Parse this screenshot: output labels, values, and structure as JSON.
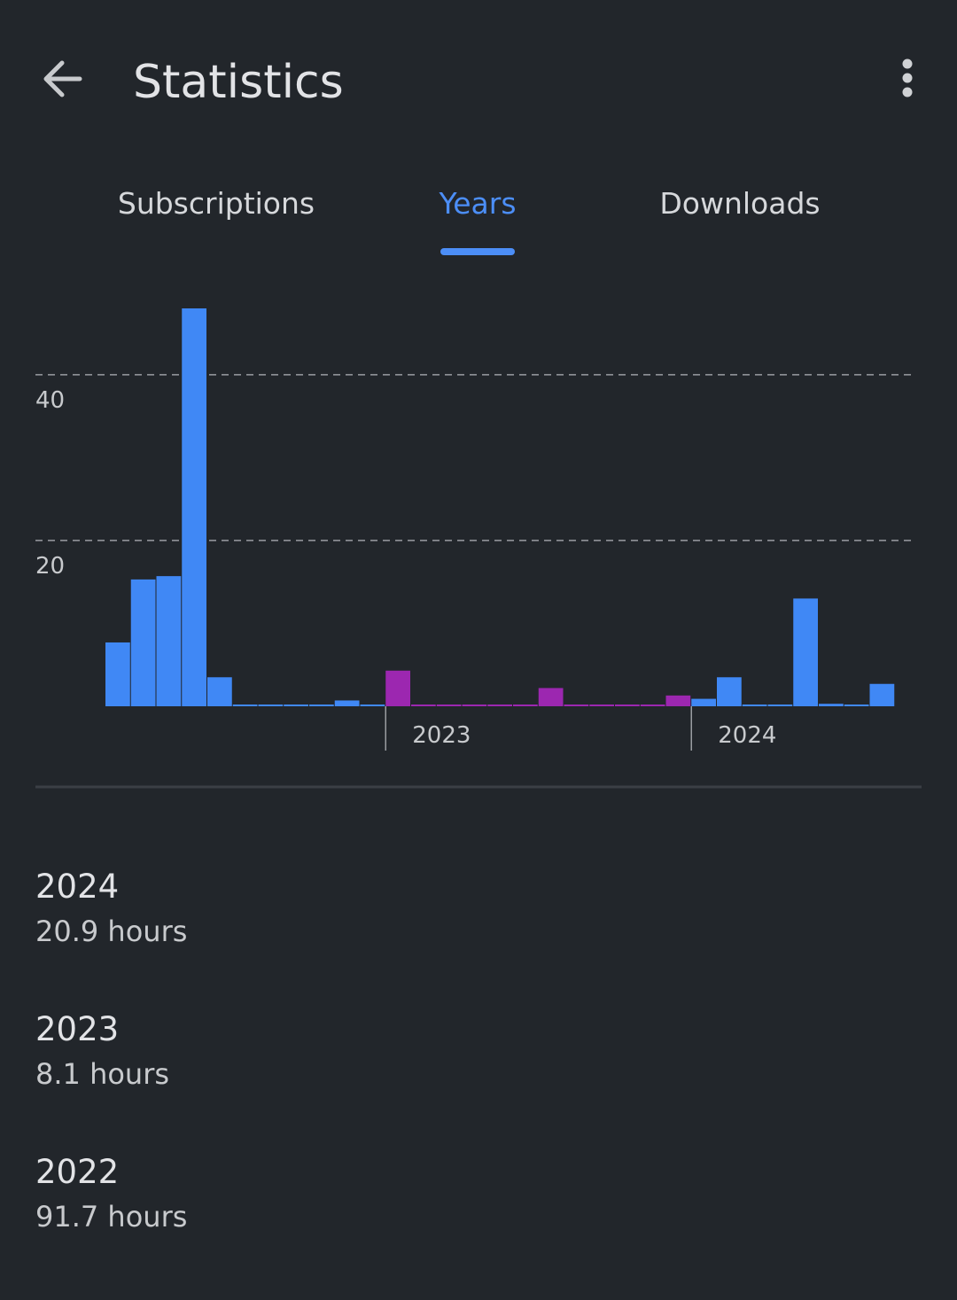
{
  "header": {
    "title": "Statistics"
  },
  "tabs": [
    "Subscriptions",
    "Years",
    "Downloads"
  ],
  "selected_tab": 1,
  "chart_data": {
    "type": "bar",
    "categories": [
      null,
      null,
      null,
      null,
      null,
      null,
      null,
      null,
      null,
      null,
      null,
      "2023",
      null,
      null,
      null,
      null,
      null,
      null,
      null,
      null,
      null,
      null,
      null,
      "2024",
      null,
      null,
      null,
      null,
      null,
      null,
      null
    ],
    "values": [
      7.7,
      15.3,
      15.7,
      48.0,
      3.5,
      0.1,
      0.1,
      0.1,
      0.1,
      0.7,
      0.1,
      4.3,
      0.1,
      0.1,
      0.1,
      0.1,
      0.1,
      2.2,
      0.1,
      0.1,
      0.1,
      0.1,
      1.3,
      0.9,
      3.5,
      0.1,
      0.1,
      13.0,
      0.3,
      0.1,
      2.7
    ],
    "colors": [
      "#4088f5",
      "#4088f5",
      "#4088f5",
      "#4088f5",
      "#4088f5",
      "#4088f5",
      "#4088f5",
      "#4088f5",
      "#4088f5",
      "#4088f5",
      "#4088f5",
      "#9c27b0",
      "#9c27b0",
      "#9c27b0",
      "#9c27b0",
      "#9c27b0",
      "#9c27b0",
      "#9c27b0",
      "#9c27b0",
      "#9c27b0",
      "#9c27b0",
      "#9c27b0",
      "#9c27b0",
      "#4088f5",
      "#4088f5",
      "#4088f5",
      "#4088f5",
      "#4088f5",
      "#4088f5",
      "#4088f5",
      "#4088f5"
    ],
    "ylim": [
      0,
      48
    ],
    "yticks": [
      20,
      40
    ],
    "grid": true
  },
  "years": [
    {
      "year": "2024",
      "time": "20.9 hours"
    },
    {
      "year": "2023",
      "time": "8.1 hours"
    },
    {
      "year": "2022",
      "time": "91.7 hours"
    }
  ]
}
